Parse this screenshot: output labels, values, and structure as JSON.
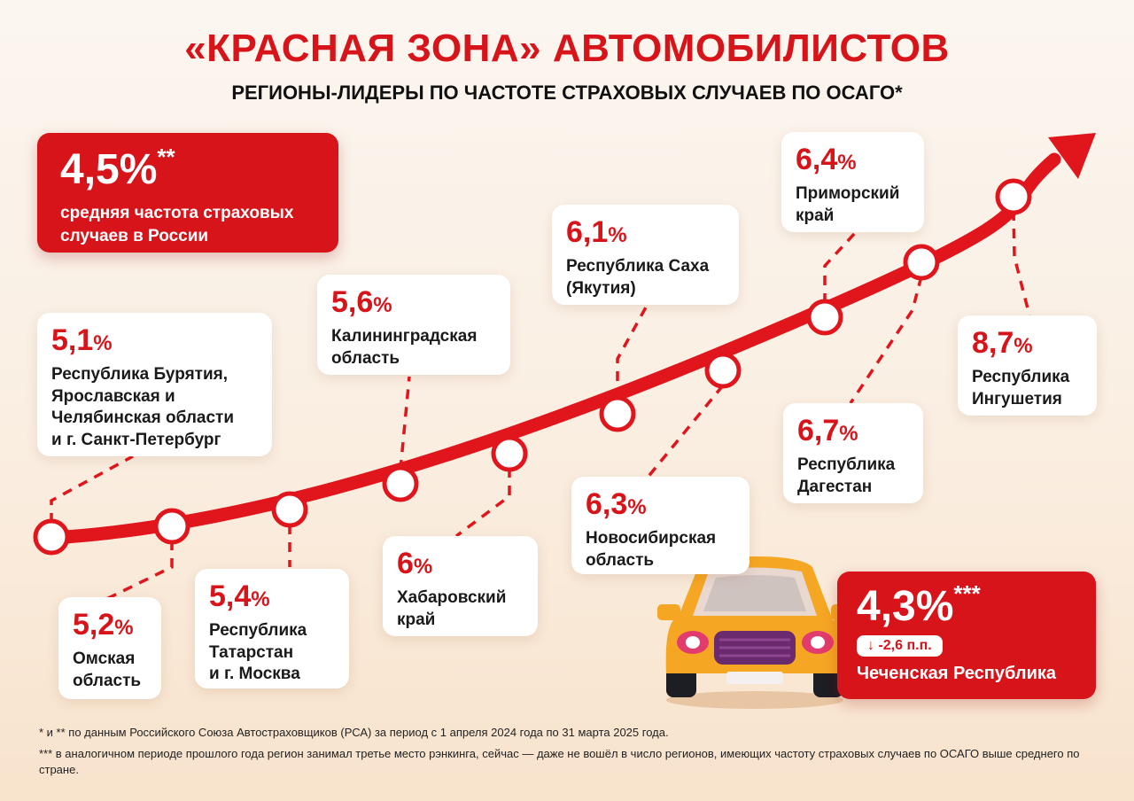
{
  "header": {
    "title": "«КРАСНАЯ ЗОНА» АВТОМОБИЛИСТОВ",
    "subtitle": "РЕГИОНЫ-ЛИДЕРЫ ПО ЧАСТОТЕ СТРАХОВЫХ СЛУЧАЕВ ПО ОСАГО*"
  },
  "average": {
    "value": "4,5%",
    "mark": "**",
    "text_line1": "средняя частота страховых",
    "text_line2": "случаев в России"
  },
  "regions": [
    {
      "value": "5,1",
      "unit": "%",
      "lines": [
        "Республика Бурятия,",
        "Ярославская и",
        "Челябинская области",
        "и г. Санкт-Петербург"
      ]
    },
    {
      "value": "5,2",
      "unit": "%",
      "lines": [
        "Омская",
        "область"
      ]
    },
    {
      "value": "5,4",
      "unit": "%",
      "lines": [
        "Республика",
        "Татарстан",
        "и г. Москва"
      ]
    },
    {
      "value": "5,6",
      "unit": "%",
      "lines": [
        "Калининградская",
        "область"
      ]
    },
    {
      "value": "6",
      "unit": "%",
      "lines": [
        "Хабаровский",
        "край"
      ]
    },
    {
      "value": "6,1",
      "unit": "%",
      "lines": [
        "Республика Саха",
        "(Якутия)"
      ]
    },
    {
      "value": "6,3",
      "unit": "%",
      "lines": [
        "Новосибирская",
        "область"
      ]
    },
    {
      "value": "6,4",
      "unit": "%",
      "lines": [
        "Приморский",
        "край"
      ]
    },
    {
      "value": "6,7",
      "unit": "%",
      "lines": [
        "Республика",
        "Дагестан"
      ]
    },
    {
      "value": "8,7",
      "unit": "%",
      "lines": [
        "Республика",
        "Ингушетия"
      ]
    }
  ],
  "chechnya": {
    "value": "4,3%",
    "mark": "***",
    "change": "↓ -2,6 п.п.",
    "name": "Чеченская Республика"
  },
  "footnotes": {
    "line1": "* и ** по данным Российского Союза Автостраховщиков (РСА) за период с 1 апреля 2024 года по 31 марта 2025 года.",
    "line2": "*** в аналогичном периоде прошлого года регион занимал третье место рэнкинга, сейчас — даже не вошёл в число регионов, имеющих частоту страховых случаев по ОСАГО выше среднего по стране."
  },
  "colors": {
    "accent": "#d7141a",
    "car": "#f5a623"
  },
  "icons": {
    "car": "car-icon",
    "arrow": "arrow-head-icon"
  }
}
